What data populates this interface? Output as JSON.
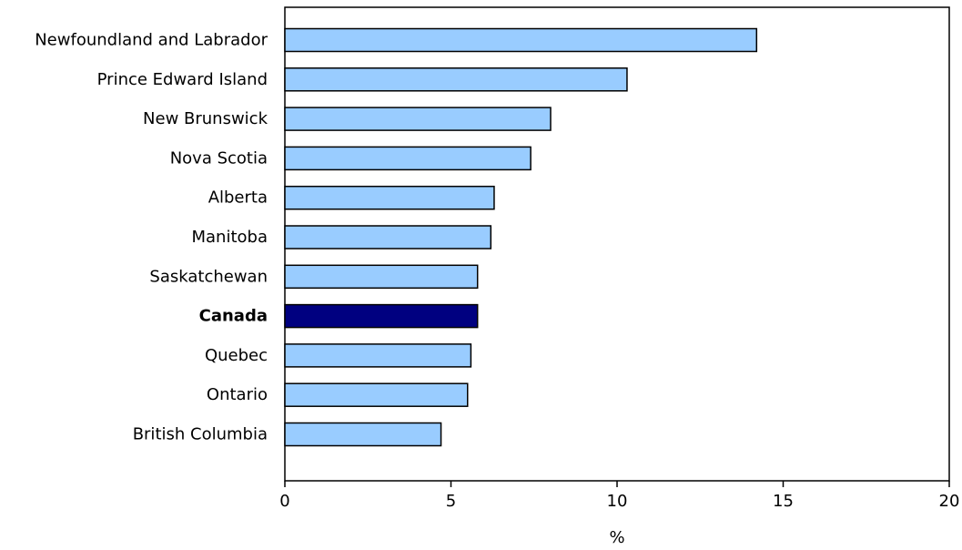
{
  "chart_data": {
    "type": "bar",
    "orientation": "horizontal",
    "categories": [
      "Newfoundland and Labrador",
      "Prince Edward Island",
      "New Brunswick",
      "Nova Scotia",
      "Alberta",
      "Manitoba",
      "Saskatchewan",
      "Canada",
      "Quebec",
      "Ontario",
      "British Columbia"
    ],
    "values": [
      14.2,
      10.3,
      8.0,
      7.4,
      6.3,
      6.2,
      5.8,
      5.8,
      5.6,
      5.5,
      4.7
    ],
    "highlight_category": "Canada",
    "title": "",
    "xlabel": "%",
    "ylabel": "",
    "xlim": [
      0,
      20
    ],
    "xticks": [
      0,
      5,
      10,
      15,
      20
    ],
    "grid": false,
    "colors": {
      "bar": "#99ccff",
      "highlight_bar": "#000080",
      "bar_stroke": "#000000",
      "axis": "#000000"
    }
  }
}
